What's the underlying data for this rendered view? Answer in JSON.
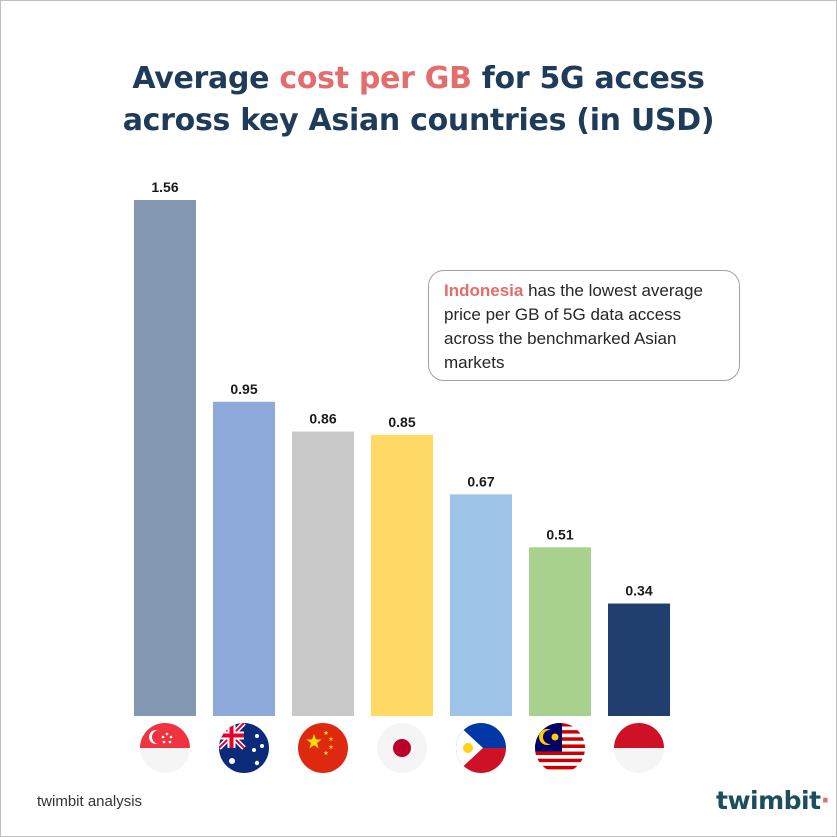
{
  "title": {
    "part1": "Average ",
    "highlight": "cost per GB",
    "part2": " for 5G access",
    "line2": "across key Asian countries (in USD)"
  },
  "callout": {
    "highlight": "Indonesia",
    "text": " has the lowest average price per GB of 5G data access across the benchmarked Asian markets"
  },
  "footer": {
    "source": "twimbit analysis"
  },
  "logo": {
    "text": "twimbit"
  },
  "colors": {
    "title": "#1f3b5a",
    "accent": "#e36c6c"
  },
  "chart_data": {
    "type": "bar",
    "categories": [
      "singapore-flag",
      "australia-flag",
      "china-flag",
      "japan-flag",
      "philippines-flag",
      "malaysia-flag",
      "indonesia-flag"
    ],
    "values": [
      1.56,
      0.95,
      0.86,
      0.85,
      0.67,
      0.51,
      0.34
    ],
    "value_labels": [
      "1.56",
      "0.95",
      "0.86",
      "0.85",
      "0.67",
      "0.51",
      "0.34"
    ],
    "colors": [
      "#8497b0",
      "#8eaadb",
      "#c9c9c9",
      "#ffd966",
      "#9dc3e6",
      "#a9d18e",
      "#203f6f"
    ],
    "ylim": [
      0,
      1.56
    ],
    "title": "Average cost per GB for 5G access across key Asian countries (in USD)",
    "xlabel": "",
    "ylabel": "",
    "grid": false,
    "legend": "none"
  }
}
